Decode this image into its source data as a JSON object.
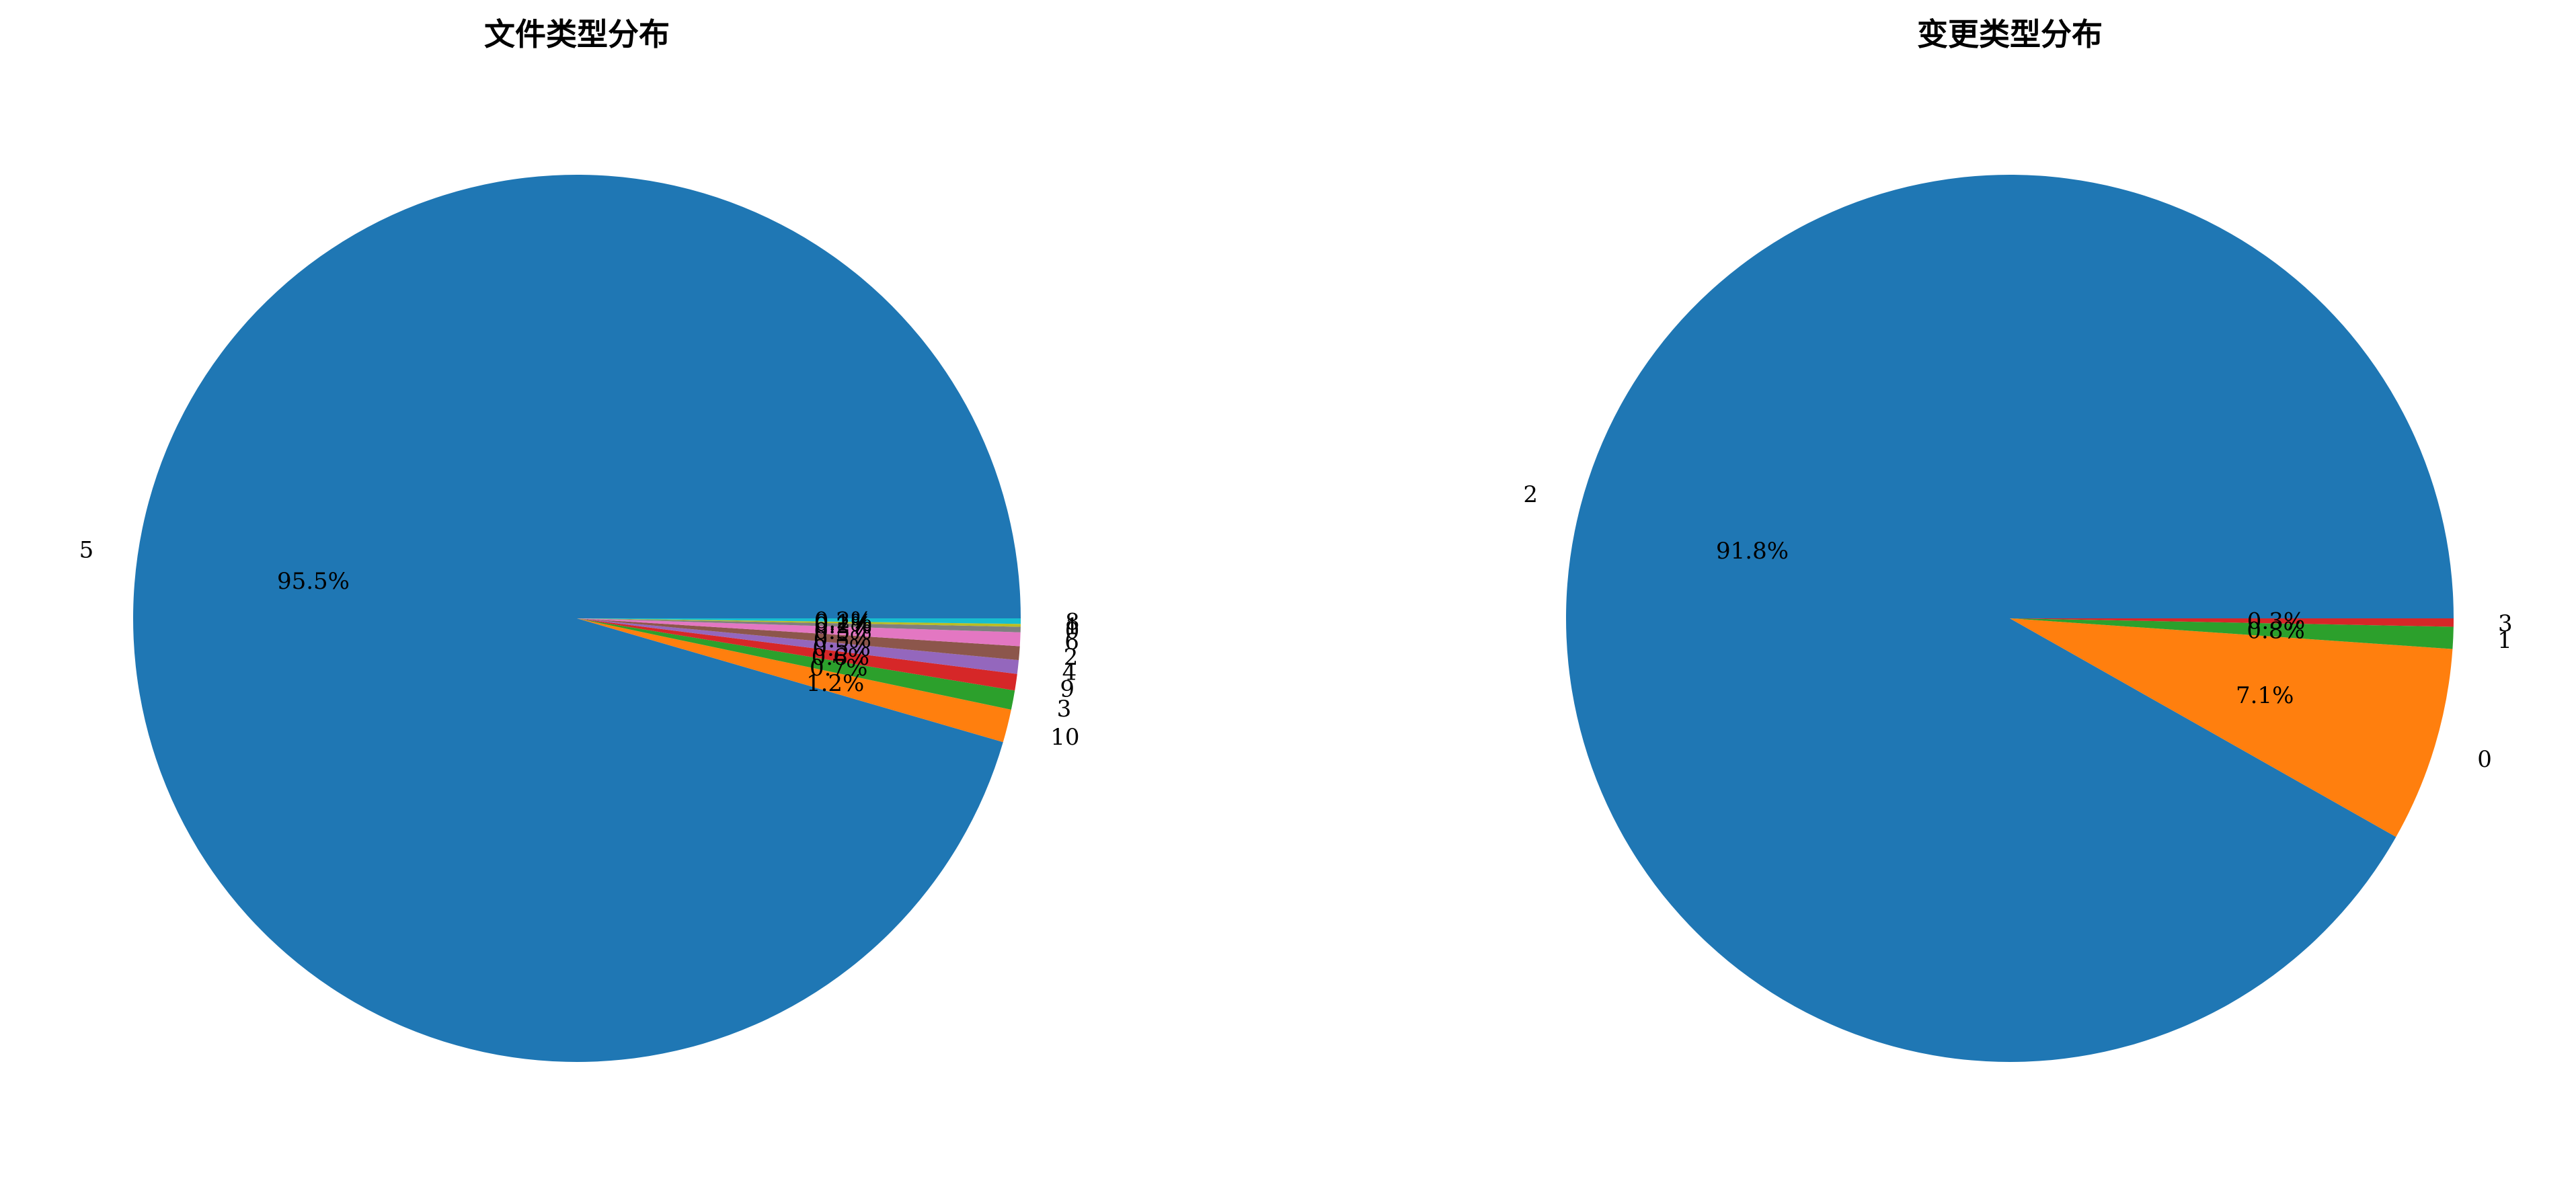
{
  "chart_data": [
    {
      "type": "pie",
      "title": "文件类型分布",
      "slices": [
        {
          "label": "5",
          "value": 95.5,
          "pct_label": "95.5%",
          "color": "#1f77b4"
        },
        {
          "label": "10",
          "value": 1.2,
          "pct_label": "1.2%",
          "color": "#ff7f0e"
        },
        {
          "label": "3",
          "value": 0.7,
          "pct_label": "0.7%",
          "color": "#2ca02c"
        },
        {
          "label": "9",
          "value": 0.6,
          "pct_label": "0.6%",
          "color": "#d62728"
        },
        {
          "label": "4",
          "value": 0.5,
          "pct_label": "0.5%",
          "color": "#9467bd"
        },
        {
          "label": "2",
          "value": 0.5,
          "pct_label": "0.5%",
          "color": "#8c564b"
        },
        {
          "label": "6",
          "value": 0.5,
          "pct_label": "0.5%",
          "color": "#e377c2"
        },
        {
          "label": "0",
          "value": 0.2,
          "pct_label": "0.2%",
          "color": "#7f7f7f"
        },
        {
          "label": "1",
          "value": 0.1,
          "pct_label": "0.1%",
          "color": "#bcbd22"
        },
        {
          "label": "8",
          "value": 0.2,
          "pct_label": "0.2%",
          "color": "#17becf"
        }
      ]
    },
    {
      "type": "pie",
      "title": "变更类型分布",
      "slices": [
        {
          "label": "2",
          "value": 91.8,
          "pct_label": "91.8%",
          "color": "#1f77b4"
        },
        {
          "label": "0",
          "value": 7.1,
          "pct_label": "7.1%",
          "color": "#ff7f0e"
        },
        {
          "label": "1",
          "value": 0.8,
          "pct_label": "0.8%",
          "color": "#2ca02c"
        },
        {
          "label": "3",
          "value": 0.3,
          "pct_label": "0.3%",
          "color": "#d62728"
        }
      ]
    }
  ]
}
